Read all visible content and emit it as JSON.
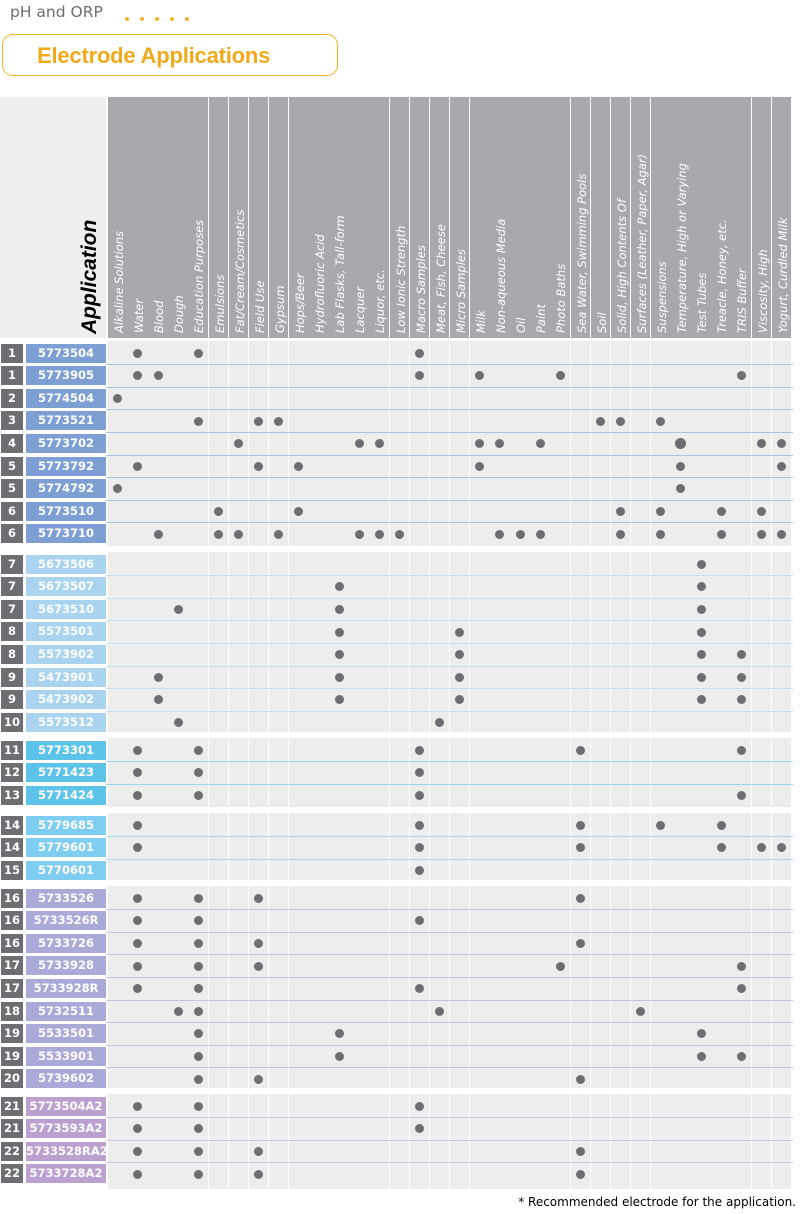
{
  "header": {
    "section_title": "pH and ORP",
    "page_title": "Electrode Applications"
  },
  "table": {
    "corner_label": "Application",
    "columns": [
      "Alkaline Solutions",
      "Water",
      "Blood",
      "Dough",
      "Education Purposes",
      "Emulsions",
      "Fat/Cream/Cosmetics",
      "Field Use",
      "Gypsum",
      "Hops/Beer",
      "Hydrofluoric Acid",
      "Lab Flasks, Tall-form",
      "Lacquer",
      "Liquor, etc.",
      "Low Ionic Strength",
      "Macro Samples",
      "Meat, Fish, Cheese",
      "Micro Samples",
      "Milk",
      "Non-aqueous Media",
      "Oil",
      "Paint",
      "Photo Baths",
      "Sea Water, Swimming Pools",
      "Soil",
      "Solid, High Contents Of",
      "Surfaces (Leather, Paper, Agar)",
      "Suspensions",
      "Temperature, High or Varying",
      "Test Tubes",
      "Treacle, Honey, etc.",
      "TRIS Buffer",
      "Viscosity, High",
      "Yogurt, Curdled Milk"
    ],
    "groups": [
      {
        "color": "#7d9fd4",
        "line_color": "#a5c4e4",
        "rows": [
          {
            "num": "1",
            "label": "5773504",
            "marks": [
              1,
              4,
              15
            ]
          },
          {
            "num": "1",
            "label": "5773905",
            "marks": [
              1,
              2,
              15,
              18,
              22,
              31
            ]
          },
          {
            "num": "2",
            "label": "5774504",
            "marks": [
              0
            ]
          },
          {
            "num": "3",
            "label": "5773521",
            "marks": [
              4,
              7,
              8,
              24,
              25,
              27
            ]
          },
          {
            "num": "4",
            "label": "5773702",
            "marks": [
              6,
              12,
              13,
              18,
              19,
              21,
              28,
              32,
              33
            ]
          },
          {
            "num": "5",
            "label": "5773792",
            "marks": [
              1,
              7,
              9,
              18,
              28,
              33
            ]
          },
          {
            "num": "5",
            "label": "5774792",
            "marks": [
              0,
              28
            ]
          },
          {
            "num": "6",
            "label": "5773510",
            "marks": [
              5,
              9,
              25,
              27,
              30,
              32
            ]
          },
          {
            "num": "6",
            "label": "5773710",
            "marks": [
              2,
              5,
              6,
              8,
              12,
              13,
              14,
              19,
              20,
              21,
              25,
              27,
              30,
              32,
              33
            ]
          }
        ]
      },
      {
        "color": "#a9d3ee",
        "line_color": "#c1e0f3",
        "rows": [
          {
            "num": "7",
            "label": "5673506",
            "marks": [
              29
            ]
          },
          {
            "num": "7",
            "label": "5673507",
            "marks": [
              11,
              29
            ]
          },
          {
            "num": "7",
            "label": "5673510",
            "marks": [
              3,
              11,
              29
            ]
          },
          {
            "num": "8",
            "label": "5573501",
            "marks": [
              11,
              17,
              29
            ]
          },
          {
            "num": "8",
            "label": "5573902",
            "marks": [
              11,
              17,
              29,
              31
            ]
          },
          {
            "num": "9",
            "label": "5473901",
            "marks": [
              2,
              11,
              17,
              29,
              31
            ]
          },
          {
            "num": "9",
            "label": "5473902",
            "marks": [
              2,
              11,
              17,
              29,
              31
            ]
          },
          {
            "num": "10",
            "label": "5573512",
            "marks": [
              3,
              16
            ]
          }
        ]
      },
      {
        "color": "#5ec3e8",
        "line_color": "#97d7ef",
        "rows": [
          {
            "num": "11",
            "label": "5773301",
            "marks": [
              1,
              4,
              15,
              23,
              31
            ]
          },
          {
            "num": "12",
            "label": "5771423",
            "marks": [
              1,
              4,
              15
            ]
          },
          {
            "num": "13",
            "label": "5771424",
            "marks": [
              1,
              4,
              15,
              31
            ]
          }
        ]
      },
      {
        "color": "#7fcdf0",
        "line_color": "#a6dcf3",
        "rows": [
          {
            "num": "14",
            "label": "5779685",
            "marks": [
              1,
              15,
              23,
              27,
              30
            ]
          },
          {
            "num": "14",
            "label": "5779601",
            "marks": [
              1,
              15,
              23,
              30,
              32,
              33
            ]
          },
          {
            "num": "15",
            "label": "5770601",
            "marks": [
              15
            ]
          }
        ]
      },
      {
        "color": "#a9aad8",
        "line_color": "#c3c3e3",
        "rows": [
          {
            "num": "16",
            "label": "5733526",
            "marks": [
              1,
              4,
              7,
              23
            ]
          },
          {
            "num": "16",
            "label": "5733526R",
            "marks": [
              1,
              4,
              15
            ]
          },
          {
            "num": "16",
            "label": "5733726",
            "marks": [
              1,
              4,
              7,
              23
            ]
          },
          {
            "num": "17",
            "label": "5733928",
            "marks": [
              1,
              4,
              7,
              22,
              31
            ]
          },
          {
            "num": "17",
            "label": "5733928R",
            "marks": [
              1,
              4,
              15,
              31
            ]
          },
          {
            "num": "18",
            "label": "5732511",
            "marks": [
              3,
              4,
              16,
              26
            ]
          },
          {
            "num": "19",
            "label": "5533501",
            "marks": [
              4,
              11,
              29
            ]
          },
          {
            "num": "19",
            "label": "5533901",
            "marks": [
              4,
              11,
              29,
              31
            ]
          },
          {
            "num": "20",
            "label": "5739602",
            "marks": [
              4,
              7,
              23
            ]
          }
        ]
      },
      {
        "color": "#bca0d0",
        "line_color": "#d5c2e2",
        "rows": [
          {
            "num": "21",
            "label": "5773504A2",
            "marks": [
              1,
              4,
              15
            ]
          },
          {
            "num": "21",
            "label": "5773593A2",
            "marks": [
              1,
              4,
              15
            ]
          },
          {
            "num": "22",
            "label": "5733528RA2",
            "marks": [
              1,
              4,
              7,
              23
            ]
          },
          {
            "num": "22",
            "label": "5733728A2",
            "marks": [
              1,
              4,
              7,
              23
            ]
          }
        ]
      }
    ]
  },
  "footnote": "* Recommended electrode for the application."
}
